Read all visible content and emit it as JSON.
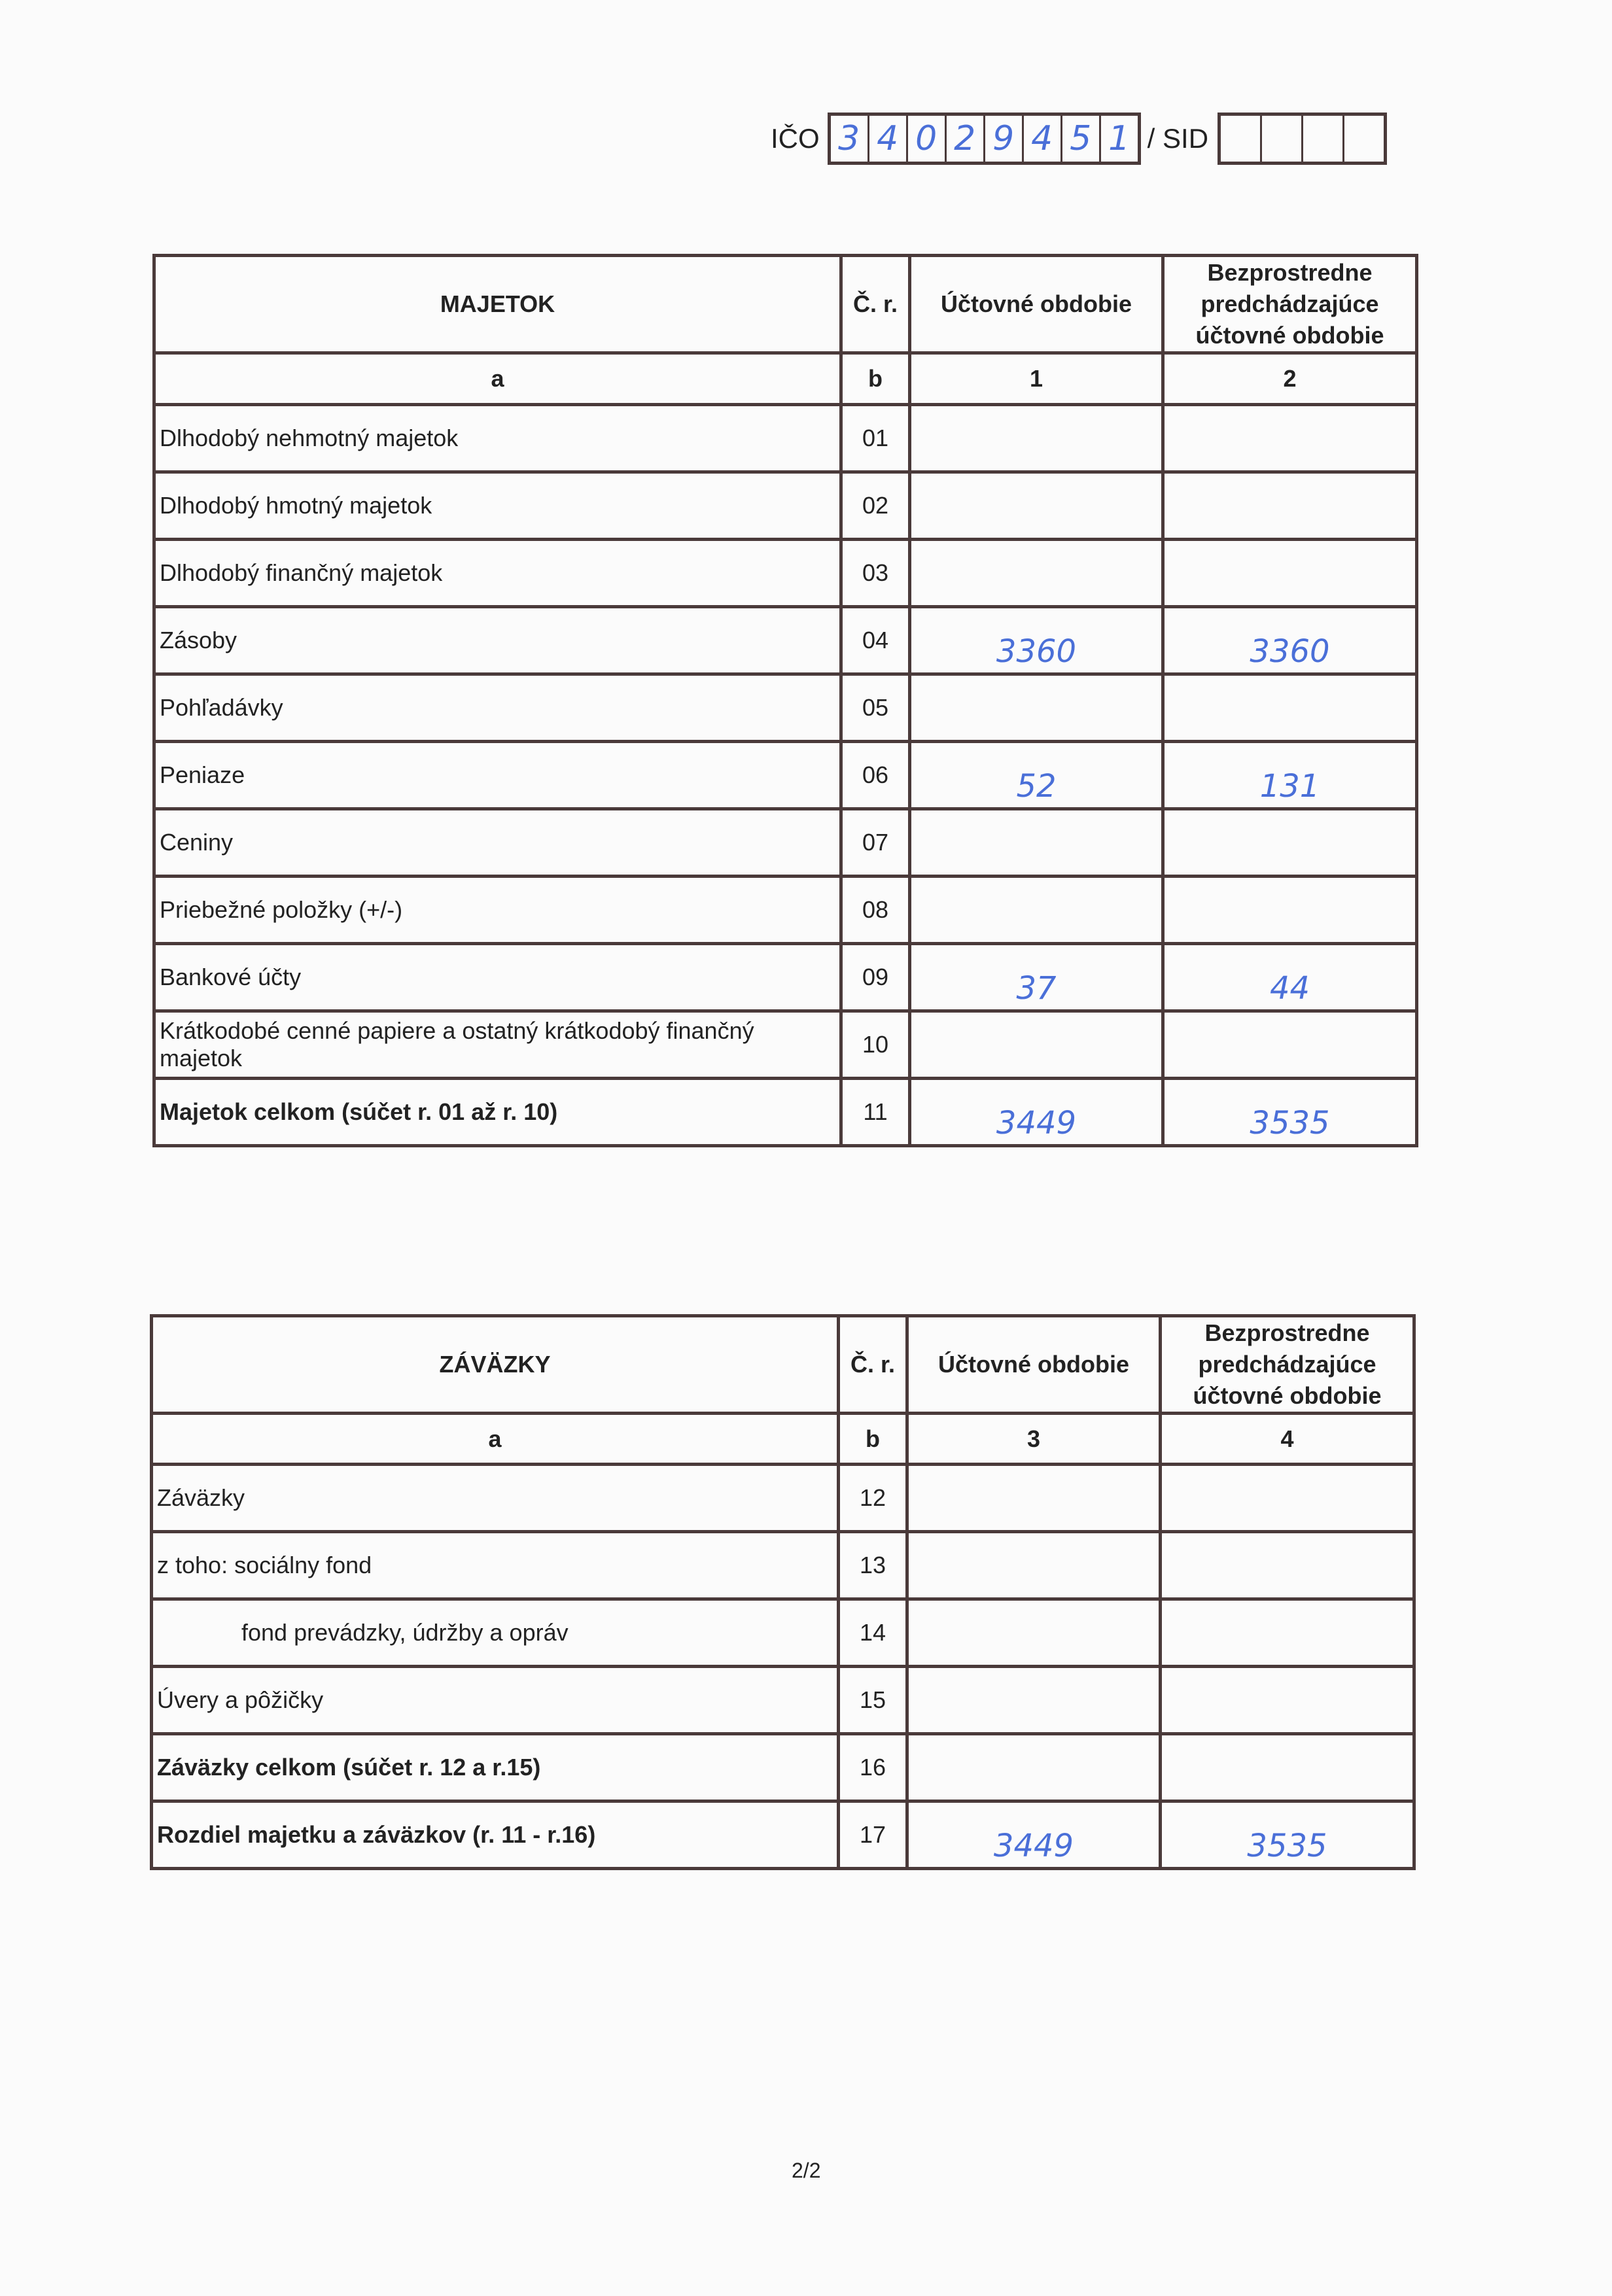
{
  "header": {
    "ico_label": "IČO",
    "ico_digits": [
      "3",
      "4",
      "0",
      "2",
      "9",
      "4",
      "5",
      "1"
    ],
    "sid_label": "/ SID",
    "sid_digits": [
      "",
      "",
      "",
      ""
    ]
  },
  "assets_table": {
    "headers": {
      "name": "MAJETOK",
      "row_no": "Č. r.",
      "current": "Účtovné obdobie",
      "previous": "Bezprostredne predchádzajúce účtovné obdobie"
    },
    "col_codes": {
      "name": "a",
      "row_no": "b",
      "current": "1",
      "previous": "2"
    },
    "rows": [
      {
        "label": "Dlhodobý nehmotný majetok",
        "no": "01",
        "current": "",
        "previous": ""
      },
      {
        "label": "Dlhodobý hmotný majetok",
        "no": "02",
        "current": "",
        "previous": ""
      },
      {
        "label": "Dlhodobý finančný majetok",
        "no": "03",
        "current": "",
        "previous": ""
      },
      {
        "label": "Zásoby",
        "no": "04",
        "current": "3360",
        "previous": "3360"
      },
      {
        "label": "Pohľadávky",
        "no": "05",
        "current": "",
        "previous": ""
      },
      {
        "label": "Peniaze",
        "no": "06",
        "current": "52",
        "previous": "131"
      },
      {
        "label": "Ceniny",
        "no": "07",
        "current": "",
        "previous": ""
      },
      {
        "label": "Priebežné položky (+/-)",
        "no": "08",
        "current": "",
        "previous": ""
      },
      {
        "label": "Bankové účty",
        "no": "09",
        "current": "37",
        "previous": "44"
      },
      {
        "label": "Krátkodobé cenné papiere a ostatný krátkodobý finančný majetok",
        "no": "10",
        "current": "",
        "previous": ""
      },
      {
        "label": "Majetok celkom (súčet r. 01 až r. 10)",
        "no": "11",
        "current": "3449",
        "previous": "3535",
        "bold": true
      }
    ]
  },
  "liabilities_table": {
    "headers": {
      "name": "ZÁVÄZKY",
      "row_no": "Č. r.",
      "current": "Účtovné obdobie",
      "previous": "Bezprostredne predchádzajúce účtovné obdobie"
    },
    "col_codes": {
      "name": "a",
      "row_no": "b",
      "current": "3",
      "previous": "4"
    },
    "rows": [
      {
        "label": "Záväzky",
        "no": "12",
        "current": "",
        "previous": ""
      },
      {
        "label": "z toho: sociálny fond",
        "no": "13",
        "current": "",
        "previous": ""
      },
      {
        "label": "fond prevádzky, údržby a opráv",
        "no": "14",
        "current": "",
        "previous": "",
        "indent": true
      },
      {
        "label": "Úvery a pôžičky",
        "no": "15",
        "current": "",
        "previous": ""
      },
      {
        "label": "Záväzky celkom (súčet r. 12 a r.15)",
        "no": "16",
        "current": "",
        "previous": "",
        "bold": true
      },
      {
        "label": "Rozdiel majetku a záväzkov (r. 11 - r.16)",
        "no": "17",
        "current": "3449",
        "previous": "3535",
        "bold": true
      }
    ]
  },
  "footer": {
    "page": "2/2"
  },
  "colors": {
    "ink": "#4a6fd8",
    "lines": "#4a3a3a"
  }
}
